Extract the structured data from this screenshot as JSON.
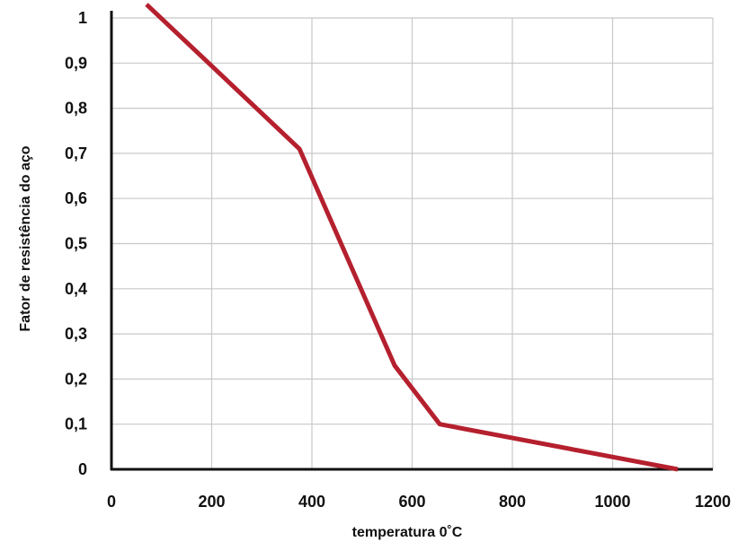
{
  "chart_data": {
    "type": "line",
    "title": "",
    "xlabel": "temperatura 0˚C",
    "ylabel": "Fator de resistência do aço",
    "xlim": [
      0,
      1200
    ],
    "ylim": [
      0,
      1
    ],
    "grid": true,
    "x_ticks": [
      0,
      200,
      400,
      600,
      800,
      1000,
      1200
    ],
    "x_tick_labels": [
      "0",
      "200",
      "400",
      "600",
      "800",
      "1000",
      "1200"
    ],
    "y_ticks": [
      0,
      0.1,
      0.2,
      0.3,
      0.4,
      0.5,
      0.6,
      0.7,
      0.8,
      0.9,
      1
    ],
    "y_tick_labels": [
      "0",
      "0,1",
      "0,2",
      "0,3",
      "0,4",
      "0,5",
      "0,6",
      "0,7",
      "0,8",
      "0,9",
      "1"
    ],
    "series": [
      {
        "color": "#b5202e",
        "x": [
          70,
          375,
          565,
          655,
          1130
        ],
        "y": [
          1.03,
          0.71,
          0.23,
          0.1,
          0.0
        ]
      }
    ]
  }
}
